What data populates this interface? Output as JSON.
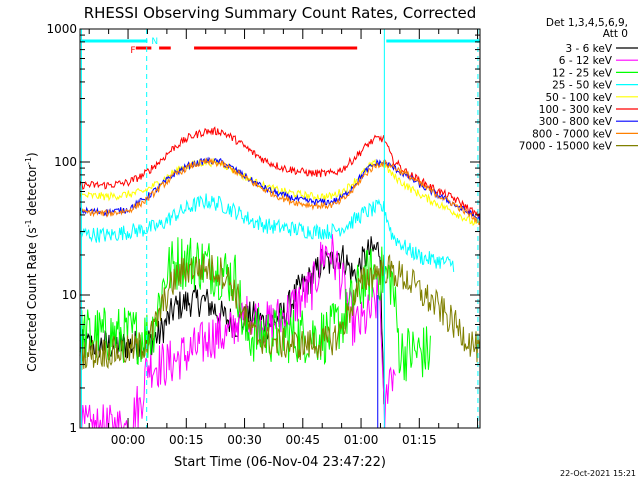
{
  "chart_data": {
    "type": "line",
    "title": "RHESSI Observing Summary Count Rates, Corrected",
    "xlabel": "Start Time (06-Nov-04 23:47:22)",
    "ylabel_main": "Corrected Count Rate (s",
    "ylabel_sup1": "-1",
    "ylabel_mid": " detector",
    "ylabel_sup2": "-1",
    "ylabel_end": ")",
    "yscale": "log",
    "ylim": [
      1,
      1000
    ],
    "xlim_minutes": [
      -12.37,
      90.63
    ],
    "x_unit": "minutes from 00:00 (07-Nov-04)",
    "y_ticks": [
      {
        "v": 1,
        "label": "1"
      },
      {
        "v": 10,
        "label": "10"
      },
      {
        "v": 100,
        "label": "100"
      },
      {
        "v": 1000,
        "label": "1000"
      }
    ],
    "x_ticks": [
      {
        "v": 0,
        "label": "00:00"
      },
      {
        "v": 15,
        "label": "00:15"
      },
      {
        "v": 30,
        "label": "00:30"
      },
      {
        "v": 45,
        "label": "00:45"
      },
      {
        "v": 60,
        "label": "01:00"
      },
      {
        "v": 75,
        "label": "01:15"
      }
    ],
    "legend_header": [
      "Det 1,3,4,5,6,9,",
      "Att 0"
    ],
    "series": [
      {
        "name": "3 - 6 keV",
        "color": "#000000",
        "points": [
          [
            -12.4,
            4.2
          ],
          [
            4,
            4.2
          ],
          [
            8,
            5
          ],
          [
            12,
            8
          ],
          [
            16,
            9
          ],
          [
            20,
            9
          ],
          [
            24,
            7
          ],
          [
            28,
            6
          ],
          [
            32,
            7
          ],
          [
            36,
            6
          ],
          [
            40,
            7
          ],
          [
            44,
            11
          ],
          [
            48,
            14
          ],
          [
            50,
            18
          ],
          [
            52,
            17
          ],
          [
            54,
            21
          ],
          [
            56,
            18
          ],
          [
            58,
            14
          ],
          [
            60,
            17
          ],
          [
            62,
            21
          ],
          [
            64,
            22
          ],
          [
            65,
            22
          ],
          [
            65.5,
            4
          ],
          [
            66,
            1
          ]
        ]
      },
      {
        "name": "6 - 12 keV",
        "color": "#ff00ff",
        "points": [
          [
            -12.4,
            1
          ],
          [
            1,
            1
          ],
          [
            2,
            1.5
          ],
          [
            3,
            1.4
          ],
          [
            5,
            3
          ],
          [
            8,
            3
          ],
          [
            10,
            3
          ],
          [
            14,
            3.5
          ],
          [
            18,
            4
          ],
          [
            22,
            5
          ],
          [
            26,
            5
          ],
          [
            28,
            6.5
          ],
          [
            32,
            7
          ],
          [
            36,
            6
          ],
          [
            40,
            7
          ],
          [
            44,
            9
          ],
          [
            48,
            12
          ],
          [
            50,
            20
          ],
          [
            52,
            22
          ],
          [
            54,
            16
          ],
          [
            56,
            10
          ],
          [
            58,
            6
          ],
          [
            60,
            6
          ],
          [
            62,
            7
          ],
          [
            64,
            9
          ],
          [
            65,
            10
          ],
          [
            65.5,
            2
          ],
          [
            66,
            1
          ],
          [
            67,
            2.5
          ],
          [
            69,
            2.8
          ]
        ]
      },
      {
        "name": "12 - 25 keV",
        "color": "#00ff00",
        "points": [
          [
            -12.4,
            5
          ],
          [
            6,
            5
          ],
          [
            8,
            9
          ],
          [
            10,
            15
          ],
          [
            13,
            18
          ],
          [
            16,
            18
          ],
          [
            20,
            17
          ],
          [
            24,
            15
          ],
          [
            28,
            13
          ],
          [
            30,
            5
          ],
          [
            32,
            5
          ],
          [
            36,
            5
          ],
          [
            40,
            5
          ],
          [
            44,
            5
          ],
          [
            48,
            5
          ],
          [
            52,
            5
          ],
          [
            54,
            6
          ],
          [
            56,
            7
          ],
          [
            58,
            9
          ],
          [
            60,
            12
          ],
          [
            62,
            14
          ],
          [
            64,
            15
          ],
          [
            66,
            14
          ],
          [
            68,
            13
          ],
          [
            70,
            3.7
          ],
          [
            74,
            3.7
          ],
          [
            78,
            3.7
          ]
        ]
      },
      {
        "name": "25 - 50 keV",
        "color": "#00ffff",
        "points": [
          [
            -12.4,
            29
          ],
          [
            -5,
            28
          ],
          [
            0,
            30
          ],
          [
            4,
            31
          ],
          [
            8,
            33
          ],
          [
            12,
            40
          ],
          [
            16,
            46
          ],
          [
            20,
            51
          ],
          [
            24,
            48
          ],
          [
            28,
            42
          ],
          [
            32,
            36
          ],
          [
            36,
            33
          ],
          [
            40,
            32
          ],
          [
            44,
            31
          ],
          [
            48,
            30
          ],
          [
            52,
            30
          ],
          [
            54,
            31
          ],
          [
            56,
            33
          ],
          [
            58,
            36
          ],
          [
            60,
            40
          ],
          [
            62,
            43
          ],
          [
            64,
            45
          ],
          [
            66,
            45
          ],
          [
            68,
            28
          ],
          [
            72,
            22
          ],
          [
            76,
            19
          ],
          [
            80,
            18
          ],
          [
            84,
            17
          ]
        ]
      },
      {
        "name": "50 - 100 keV",
        "color": "#ffff00",
        "points": [
          [
            -12.4,
            56
          ],
          [
            -5,
            55
          ],
          [
            0,
            57
          ],
          [
            4,
            60
          ],
          [
            8,
            70
          ],
          [
            12,
            85
          ],
          [
            16,
            95
          ],
          [
            20,
            100
          ],
          [
            24,
            98
          ],
          [
            28,
            85
          ],
          [
            32,
            72
          ],
          [
            36,
            64
          ],
          [
            40,
            60
          ],
          [
            44,
            57
          ],
          [
            48,
            55
          ],
          [
            52,
            55
          ],
          [
            54,
            58
          ],
          [
            56,
            62
          ],
          [
            58,
            70
          ],
          [
            60,
            80
          ],
          [
            62,
            92
          ],
          [
            64,
            98
          ],
          [
            66,
            96
          ],
          [
            68,
            80
          ],
          [
            72,
            65
          ],
          [
            76,
            55
          ],
          [
            80,
            48
          ],
          [
            84,
            42
          ],
          [
            88,
            36
          ],
          [
            90.6,
            33
          ]
        ]
      },
      {
        "name": "100 - 300 keV",
        "color": "#ff0000",
        "points": [
          [
            -12.4,
            67
          ],
          [
            -5,
            67
          ],
          [
            0,
            70
          ],
          [
            4,
            80
          ],
          [
            8,
            100
          ],
          [
            12,
            130
          ],
          [
            16,
            155
          ],
          [
            20,
            170
          ],
          [
            24,
            170
          ],
          [
            28,
            145
          ],
          [
            32,
            118
          ],
          [
            36,
            100
          ],
          [
            40,
            90
          ],
          [
            44,
            85
          ],
          [
            48,
            82
          ],
          [
            52,
            82
          ],
          [
            54,
            85
          ],
          [
            56,
            92
          ],
          [
            58,
            105
          ],
          [
            60,
            120
          ],
          [
            62,
            138
          ],
          [
            64,
            150
          ],
          [
            66,
            150
          ],
          [
            68,
            105
          ],
          [
            72,
            82
          ],
          [
            76,
            70
          ],
          [
            80,
            60
          ],
          [
            84,
            53
          ],
          [
            88,
            44
          ],
          [
            90.6,
            38
          ]
        ]
      },
      {
        "name": "300 - 800 keV",
        "color": "#0000ff",
        "points": [
          [
            -12.4,
            43
          ],
          [
            -5,
            42
          ],
          [
            0,
            44
          ],
          [
            4,
            52
          ],
          [
            8,
            65
          ],
          [
            12,
            82
          ],
          [
            16,
            95
          ],
          [
            20,
            102
          ],
          [
            24,
            100
          ],
          [
            28,
            86
          ],
          [
            32,
            72
          ],
          [
            36,
            62
          ],
          [
            40,
            56
          ],
          [
            44,
            52
          ],
          [
            48,
            50
          ],
          [
            52,
            50
          ],
          [
            54,
            52
          ],
          [
            56,
            57
          ],
          [
            58,
            66
          ],
          [
            60,
            78
          ],
          [
            62,
            90
          ],
          [
            64,
            98
          ],
          [
            66,
            99
          ],
          [
            68,
            92
          ],
          [
            72,
            78
          ],
          [
            76,
            65
          ],
          [
            80,
            56
          ],
          [
            84,
            48
          ],
          [
            88,
            41
          ],
          [
            90.6,
            37
          ]
        ]
      },
      {
        "name": "800 - 7000 keV",
        "color": "#ff8000",
        "points": [
          [
            -12.4,
            42
          ],
          [
            -5,
            41
          ],
          [
            0,
            43
          ],
          [
            4,
            50
          ],
          [
            8,
            63
          ],
          [
            12,
            80
          ],
          [
            16,
            93
          ],
          [
            20,
            100
          ],
          [
            24,
            97
          ],
          [
            28,
            84
          ],
          [
            32,
            70
          ],
          [
            36,
            60
          ],
          [
            40,
            53
          ],
          [
            44,
            49
          ],
          [
            48,
            47
          ],
          [
            52,
            47
          ],
          [
            54,
            49
          ],
          [
            56,
            54
          ],
          [
            58,
            62
          ],
          [
            60,
            74
          ],
          [
            62,
            86
          ],
          [
            64,
            95
          ],
          [
            66,
            98
          ],
          [
            68,
            93
          ],
          [
            72,
            80
          ],
          [
            76,
            66
          ],
          [
            80,
            56
          ],
          [
            84,
            48
          ],
          [
            88,
            40
          ],
          [
            90.6,
            35
          ]
        ]
      },
      {
        "name": "7000 - 15000 keV",
        "color": "#808000",
        "points": [
          [
            -12.4,
            3.6
          ],
          [
            0,
            3.8
          ],
          [
            4,
            4.2
          ],
          [
            6,
            5
          ],
          [
            8,
            7
          ],
          [
            10,
            10
          ],
          [
            12,
            13
          ],
          [
            14,
            15
          ],
          [
            16,
            16
          ],
          [
            20,
            16
          ],
          [
            24,
            15
          ],
          [
            26,
            13
          ],
          [
            28,
            10
          ],
          [
            30,
            7
          ],
          [
            32,
            5
          ],
          [
            36,
            4.5
          ],
          [
            40,
            4.3
          ],
          [
            44,
            4.2
          ],
          [
            48,
            4.3
          ],
          [
            52,
            4.5
          ],
          [
            54,
            5
          ],
          [
            56,
            6.5
          ],
          [
            58,
            9
          ],
          [
            60,
            12
          ],
          [
            62,
            14
          ],
          [
            64,
            15
          ],
          [
            66,
            16
          ],
          [
            68,
            15
          ],
          [
            72,
            13
          ],
          [
            76,
            10
          ],
          [
            80,
            8
          ],
          [
            84,
            6
          ],
          [
            88,
            4.5
          ],
          [
            90.6,
            3.8
          ]
        ]
      }
    ],
    "markers": {
      "attenuator_bar": [
        [
          -12.4,
          7
        ],
        [
          64.5,
          1
        ],
        [
          66,
          1
        ],
        [
          90.6,
          1
        ]
      ],
      "flare_flag_segments": [
        [
          2,
          6
        ],
        [
          8,
          11
        ],
        [
          17,
          59
        ]
      ],
      "flag_labels": [
        "F",
        "N"
      ],
      "dashed_vlines_minutes": [
        4.8,
        90.1
      ],
      "solid_vlines_minutes": [
        -12.0,
        66.0
      ]
    }
  },
  "footer_timestamp": "22-Oct-2021 15:21"
}
